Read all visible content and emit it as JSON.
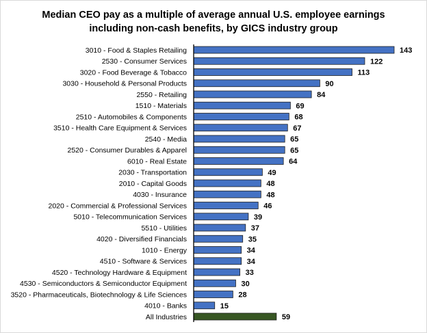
{
  "chart_data": {
    "type": "bar",
    "orientation": "horizontal",
    "title_lines": [
      "Median CEO pay as a multiple of average annual U.S. employee earnings",
      "including non-cash benefits, by GICS industry group"
    ],
    "categories": [
      "3010 - Food & Staples Retailing",
      "2530 - Consumer Services",
      "3020 - Food Beverage & Tobacco",
      "3030 - Household & Personal Products",
      "2550 - Retailing",
      "1510 - Materials",
      "2510 - Automobiles & Components",
      "3510 - Health Care Equipment & Services",
      "2540 - Media",
      "2520 - Consumer Durables & Apparel",
      "6010 - Real Estate",
      "2030 - Transportation",
      "2010 - Capital Goods",
      "4030 - Insurance",
      "2020 - Commercial & Professional Services",
      "5010 - Telecommunication Services",
      "5510 - Utilities",
      "4020 - Diversified Financials",
      "1010 - Energy",
      "4510 - Software & Services",
      "4520 - Technology Hardware & Equipment",
      "4530 - Semiconductors & Semiconductor Equipment",
      "3520 - Pharmaceuticals, Biotechnology & Life Sciences",
      "4010 - Banks",
      "All Industries"
    ],
    "values": [
      143,
      122,
      113,
      90,
      84,
      69,
      68,
      67,
      65,
      65,
      64,
      49,
      48,
      48,
      46,
      39,
      37,
      35,
      34,
      34,
      33,
      30,
      28,
      15,
      59
    ],
    "xlim": [
      0,
      150
    ],
    "grid": false,
    "data_labels": true,
    "colors": {
      "bar": "#4472C4",
      "highlight": "#375623",
      "border": "#1F1F1F"
    },
    "highlight_category": "All Industries"
  }
}
